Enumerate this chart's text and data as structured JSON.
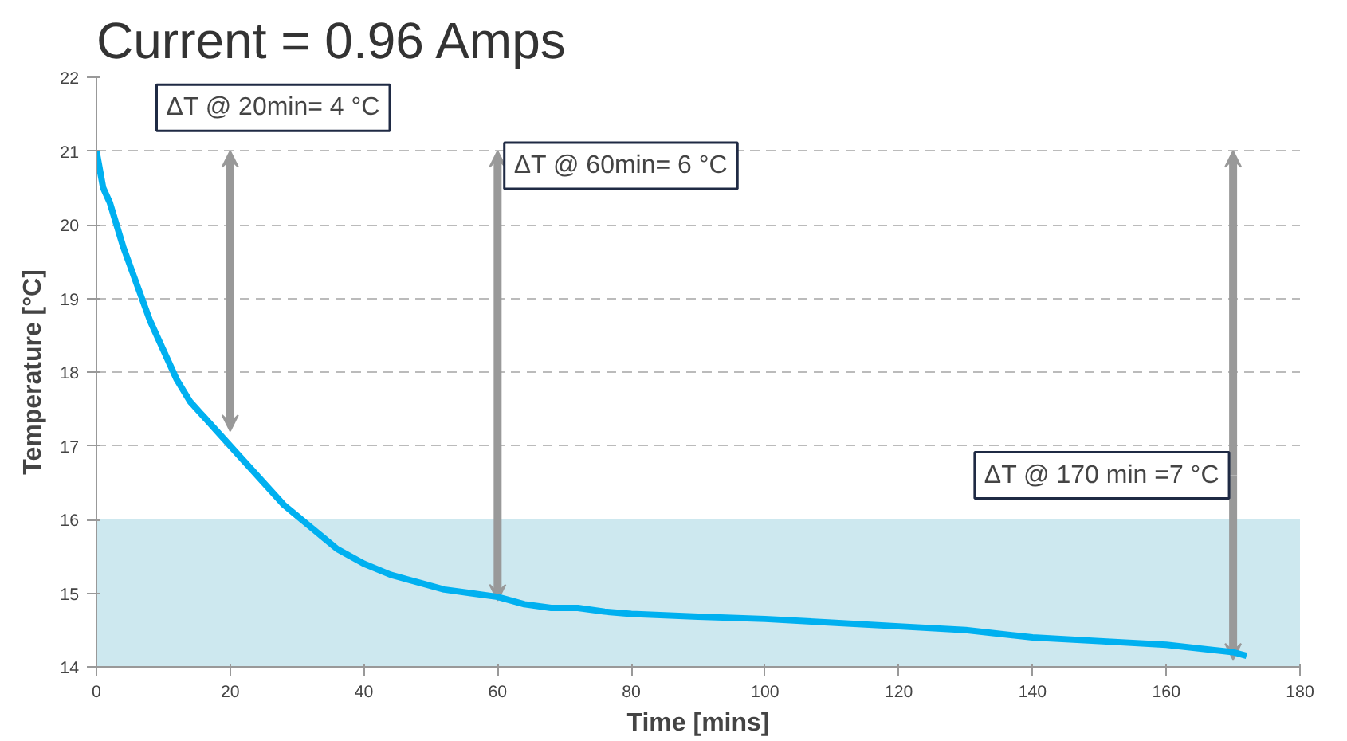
{
  "chart_data": {
    "type": "line",
    "title": "Current  = 0.96 Amps",
    "xlabel": "Time [mins]",
    "ylabel": "Temperature [°C]",
    "x": [
      0,
      1,
      2,
      4,
      6,
      8,
      10,
      12,
      14,
      16,
      18,
      20,
      22,
      24,
      26,
      28,
      30,
      32,
      34,
      36,
      38,
      40,
      44,
      48,
      52,
      56,
      60,
      64,
      68,
      72,
      76,
      80,
      90,
      100,
      110,
      120,
      130,
      140,
      150,
      160,
      170,
      172
    ],
    "series": [
      {
        "color": "#00b0f0",
        "values": [
          21,
          20.5,
          20.3,
          19.7,
          19.2,
          18.7,
          18.3,
          17.9,
          17.6,
          17.4,
          17.2,
          17.0,
          16.8,
          16.6,
          16.4,
          16.2,
          16.05,
          15.9,
          15.75,
          15.6,
          15.5,
          15.4,
          15.25,
          15.15,
          15.05,
          15.0,
          14.95,
          14.85,
          14.8,
          14.8,
          14.75,
          14.72,
          14.68,
          14.65,
          14.6,
          14.55,
          14.5,
          14.4,
          14.35,
          14.3,
          14.2,
          14.15
        ]
      }
    ],
    "xlim": [
      0,
      180
    ],
    "xticks": [
      0,
      20,
      40,
      60,
      80,
      100,
      120,
      140,
      160,
      180
    ],
    "ylim": [
      14,
      22
    ],
    "yticks": [
      14,
      15,
      16,
      17,
      18,
      19,
      20,
      21,
      22
    ],
    "grid": "y",
    "line_style": "solid",
    "marker": "none",
    "bands": [
      {
        "axis": "y",
        "from": 14,
        "to": 16,
        "color": "#cde8ef"
      }
    ],
    "annotations": [
      {
        "text": "ΔT @ 20min= 4 °C",
        "x": 20,
        "y": 17.2
      },
      {
        "text": "ΔT @ 60min= 6 °C",
        "x": 60,
        "y": 14.9
      },
      {
        "text": "ΔT @ 170 min =7 °C",
        "x": 170,
        "y": 14.1
      }
    ]
  }
}
